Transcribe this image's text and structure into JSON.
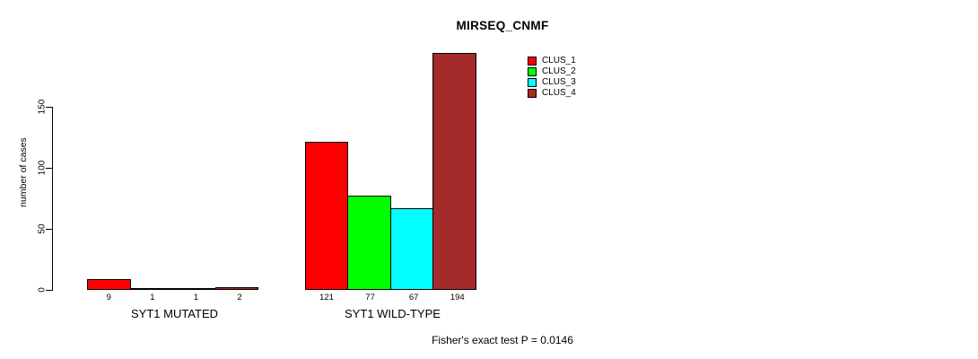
{
  "chart_data": {
    "type": "bar",
    "title": "MIRSEQ_CNMF",
    "ylabel": "number of cases",
    "xlabel": "",
    "ylim": [
      0,
      200
    ],
    "yticks": [
      0,
      50,
      100,
      150
    ],
    "grid": false,
    "legend_position": "top-right-inside",
    "series": [
      "CLUS_1",
      "CLUS_2",
      "CLUS_3",
      "CLUS_4"
    ],
    "colors": [
      "#FF0000",
      "#00FF00",
      "#00FFFF",
      "#A52A2A"
    ],
    "groups": [
      {
        "label": "SYT1 MUTATED",
        "values": [
          9,
          1,
          1,
          2
        ]
      },
      {
        "label": "SYT1 WILD-TYPE",
        "values": [
          121,
          77,
          67,
          194
        ]
      }
    ],
    "footnote": "Fisher's exact test P = 0.0146"
  }
}
